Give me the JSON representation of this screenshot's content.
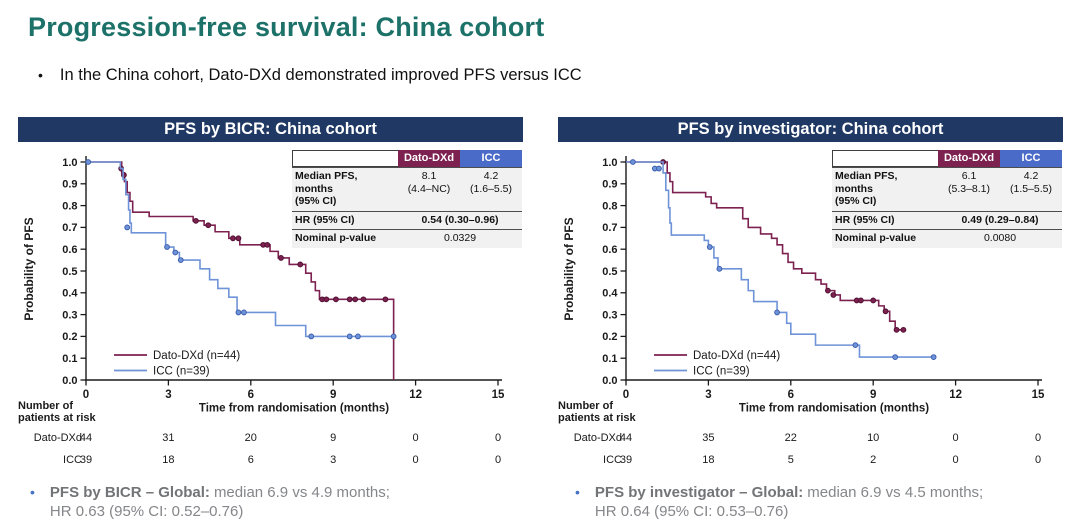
{
  "page": {
    "title": "Progression-free survival: China cohort",
    "bullet": "In the China cohort, Dato-DXd demonstrated improved PFS versus ICC"
  },
  "colors": {
    "title_teal": "#1c7168",
    "header_navy": "#1f3864",
    "dato_maroon": "#7c2150",
    "icc_curve_blue": "#6f93d8",
    "icc_header_blue": "#4a6bc7",
    "footnote_gray": "#85868a",
    "footnote_bullet_blue": "#4472c4"
  },
  "panels": [
    {
      "header": "PFS by BICR: China cohort",
      "stats": {
        "col1": "Dato-DXd",
        "col2": "ICC",
        "median_label1": "Median PFS, months",
        "median_label2": "(95% CI)",
        "median_dato": "8.1",
        "median_dato_ci": "(4.4–NC)",
        "median_icc": "4.2",
        "median_icc_ci": "(1.6–5.5)",
        "hr_label": "HR (95% CI)",
        "hr_value": "0.54 (0.30–0.96)",
        "p_label": "Nominal p-value",
        "p_value": "0.0329"
      },
      "at_risk": {
        "title_line1": "Number of",
        "title_line2": "patients at risk",
        "rows": [
          {
            "label": "Dato-DXd",
            "values": [
              "44",
              "31",
              "20",
              "9",
              "0",
              "0"
            ]
          },
          {
            "label": "ICC",
            "values": [
              "39",
              "18",
              "6",
              "3",
              "0",
              "0"
            ]
          }
        ]
      },
      "footnote": {
        "bold": "PFS by BICR – Global:",
        "text": "median 6.9 vs 4.9 months;",
        "line2": "HR 0.63 (95% CI: 0.52–0.76)"
      }
    },
    {
      "header": "PFS by investigator: China cohort",
      "stats": {
        "col1": "Dato-DXd",
        "col2": "ICC",
        "median_label1": "Median PFS, months",
        "median_label2": "(95% CI)",
        "median_dato": "6.1",
        "median_dato_ci": "(5.3–8.1)",
        "median_icc": "4.2",
        "median_icc_ci": "(1.5–5.5)",
        "hr_label": "HR (95% CI)",
        "hr_value": "0.49 (0.29–0.84)",
        "p_label": "Nominal p-value",
        "p_value": "0.0080"
      },
      "at_risk": {
        "title_line1": "Number of",
        "title_line2": "patients at risk",
        "rows": [
          {
            "label": "Dato-DXd",
            "values": [
              "44",
              "35",
              "22",
              "10",
              "0",
              "0"
            ]
          },
          {
            "label": "ICC",
            "values": [
              "39",
              "18",
              "5",
              "2",
              "0",
              "0"
            ]
          }
        ]
      },
      "footnote": {
        "bold": "PFS by investigator – Global:",
        "text": "median 6.9 vs 4.5 months;",
        "line2": "HR 0.64 (95% CI: 0.53–0.76)"
      }
    }
  ],
  "chart_data": [
    {
      "type": "line",
      "subtype": "kaplan-meier",
      "title": "PFS by BICR: China cohort",
      "xlabel": "Time from randomisation (months)",
      "ylabel": "Probability of PFS",
      "xlim": [
        0,
        15
      ],
      "ylim": [
        0,
        1
      ],
      "xticks": [
        0,
        3,
        6,
        9,
        12,
        15
      ],
      "yticks": [
        0.0,
        0.1,
        0.2,
        0.3,
        0.4,
        0.5,
        0.6,
        0.7,
        0.8,
        0.9,
        1.0
      ],
      "grid": false,
      "legend_position": "lower-left",
      "series": [
        {
          "name": "Dato-DXd (n=44)",
          "color": "#7c2150",
          "marker_edge": "#511133",
          "steps": [
            [
              0,
              1.0
            ],
            [
              1.2,
              1.0
            ],
            [
              1.3,
              0.95
            ],
            [
              1.4,
              0.91
            ],
            [
              1.5,
              0.86
            ],
            [
              1.6,
              0.82
            ],
            [
              1.7,
              0.77
            ],
            [
              2.3,
              0.75
            ],
            [
              3.9,
              0.73
            ],
            [
              4.3,
              0.71
            ],
            [
              4.7,
              0.68
            ],
            [
              5.2,
              0.65
            ],
            [
              5.6,
              0.62
            ],
            [
              6.7,
              0.59
            ],
            [
              7.0,
              0.56
            ],
            [
              7.4,
              0.53
            ],
            [
              8.0,
              0.49
            ],
            [
              8.2,
              0.45
            ],
            [
              8.35,
              0.41
            ],
            [
              8.5,
              0.37
            ],
            [
              11.2,
              0.37
            ],
            [
              11.2,
              0.0
            ]
          ],
          "censors": [
            [
              1.28,
              0.97
            ],
            [
              1.38,
              0.94
            ],
            [
              4.0,
              0.73
            ],
            [
              4.45,
              0.71
            ],
            [
              5.35,
              0.65
            ],
            [
              5.55,
              0.65
            ],
            [
              6.45,
              0.62
            ],
            [
              6.6,
              0.62
            ],
            [
              7.1,
              0.56
            ],
            [
              7.8,
              0.53
            ],
            [
              8.6,
              0.37
            ],
            [
              8.75,
              0.37
            ],
            [
              9.1,
              0.37
            ],
            [
              9.6,
              0.37
            ],
            [
              9.8,
              0.37
            ],
            [
              10.1,
              0.37
            ],
            [
              10.9,
              0.37
            ]
          ]
        },
        {
          "name": "ICC (n=39)",
          "color": "#6f93d8",
          "marker_edge": "#3d5fae",
          "steps": [
            [
              0,
              1.0
            ],
            [
              1.15,
              1.0
            ],
            [
              1.25,
              0.97
            ],
            [
              1.35,
              0.92
            ],
            [
              1.45,
              0.85
            ],
            [
              1.55,
              0.78
            ],
            [
              1.6,
              0.72
            ],
            [
              1.65,
              0.675
            ],
            [
              2.9,
              0.61
            ],
            [
              3.2,
              0.585
            ],
            [
              3.4,
              0.55
            ],
            [
              4.15,
              0.51
            ],
            [
              4.5,
              0.46
            ],
            [
              4.8,
              0.42
            ],
            [
              5.2,
              0.38
            ],
            [
              5.5,
              0.31
            ],
            [
              6.9,
              0.25
            ],
            [
              8.0,
              0.2
            ],
            [
              11.2,
              0.2
            ]
          ],
          "censors": [
            [
              0.08,
              1.0
            ],
            [
              1.5,
              0.7
            ],
            [
              2.95,
              0.61
            ],
            [
              3.25,
              0.585
            ],
            [
              3.45,
              0.55
            ],
            [
              5.55,
              0.31
            ],
            [
              5.75,
              0.31
            ],
            [
              8.2,
              0.2
            ],
            [
              9.6,
              0.2
            ],
            [
              9.9,
              0.2
            ],
            [
              11.2,
              0.2
            ]
          ]
        }
      ]
    },
    {
      "type": "line",
      "subtype": "kaplan-meier",
      "title": "PFS by investigator: China cohort",
      "xlabel": "Time from randomisation (months)",
      "ylabel": "Probability of PFS",
      "xlim": [
        0,
        15
      ],
      "ylim": [
        0,
        1
      ],
      "xticks": [
        0,
        3,
        6,
        9,
        12,
        15
      ],
      "yticks": [
        0.0,
        0.1,
        0.2,
        0.3,
        0.4,
        0.5,
        0.6,
        0.7,
        0.8,
        0.9,
        1.0
      ],
      "grid": false,
      "legend_position": "lower-left",
      "series": [
        {
          "name": "Dato-DXd (n=44)",
          "color": "#7c2150",
          "marker_edge": "#511133",
          "steps": [
            [
              0,
              1.0
            ],
            [
              1.4,
              1.0
            ],
            [
              1.5,
              0.95
            ],
            [
              1.6,
              0.91
            ],
            [
              1.7,
              0.86
            ],
            [
              2.9,
              0.84
            ],
            [
              3.1,
              0.81
            ],
            [
              3.3,
              0.79
            ],
            [
              4.25,
              0.74
            ],
            [
              4.45,
              0.7
            ],
            [
              4.9,
              0.67
            ],
            [
              5.3,
              0.65
            ],
            [
              5.5,
              0.62
            ],
            [
              5.7,
              0.58
            ],
            [
              5.9,
              0.54
            ],
            [
              6.1,
              0.51
            ],
            [
              6.4,
              0.49
            ],
            [
              6.9,
              0.46
            ],
            [
              7.1,
              0.44
            ],
            [
              7.3,
              0.41
            ],
            [
              7.6,
              0.39
            ],
            [
              7.8,
              0.365
            ],
            [
              9.2,
              0.34
            ],
            [
              9.4,
              0.315
            ],
            [
              9.6,
              0.27
            ],
            [
              9.8,
              0.23
            ],
            [
              10.15,
              0.23
            ]
          ],
          "censors": [
            [
              1.35,
              1.0
            ],
            [
              7.35,
              0.41
            ],
            [
              7.55,
              0.39
            ],
            [
              8.4,
              0.365
            ],
            [
              8.55,
              0.365
            ],
            [
              9.0,
              0.365
            ],
            [
              9.45,
              0.315
            ],
            [
              9.85,
              0.23
            ],
            [
              10.1,
              0.23
            ]
          ]
        },
        {
          "name": "ICC (n=39)",
          "color": "#6f93d8",
          "marker_edge": "#3d5fae",
          "steps": [
            [
              0,
              1.0
            ],
            [
              1.25,
              1.0
            ],
            [
              1.35,
              0.95
            ],
            [
              1.45,
              0.87
            ],
            [
              1.55,
              0.79
            ],
            [
              1.6,
              0.72
            ],
            [
              1.65,
              0.665
            ],
            [
              2.85,
              0.64
            ],
            [
              3.0,
              0.61
            ],
            [
              3.2,
              0.56
            ],
            [
              3.35,
              0.51
            ],
            [
              4.2,
              0.46
            ],
            [
              4.45,
              0.41
            ],
            [
              4.65,
              0.36
            ],
            [
              5.5,
              0.31
            ],
            [
              5.85,
              0.26
            ],
            [
              6.0,
              0.21
            ],
            [
              6.9,
              0.16
            ],
            [
              8.5,
              0.105
            ],
            [
              11.2,
              0.105
            ]
          ],
          "censors": [
            [
              0.25,
              1.0
            ],
            [
              1.05,
              0.97
            ],
            [
              1.2,
              0.97
            ],
            [
              3.05,
              0.61
            ],
            [
              3.4,
              0.51
            ],
            [
              5.5,
              0.31
            ],
            [
              8.35,
              0.16
            ],
            [
              9.8,
              0.105
            ],
            [
              11.2,
              0.105
            ]
          ]
        }
      ]
    }
  ]
}
